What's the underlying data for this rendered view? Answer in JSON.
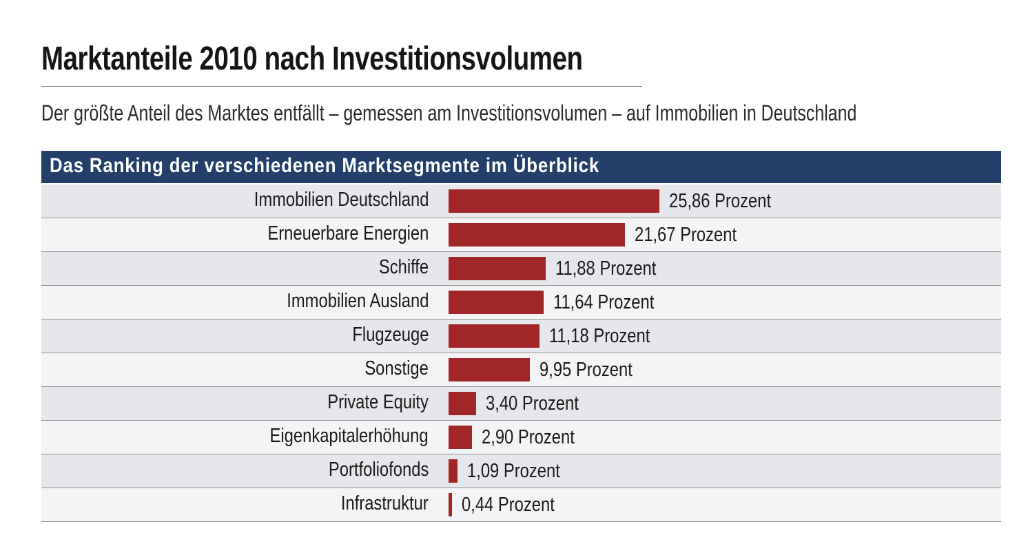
{
  "header": {
    "title": "Marktanteile 2010 nach Investitionsvolumen",
    "subtitle": "Der größte Anteil des Marktes entfällt – gemessen am Investitionsvolumen – auf Immobilien in Deutschland",
    "panel_title": "Das Ranking der verschiedenen Marktsegmente im Überblick"
  },
  "colors": {
    "bar": "#a0262a",
    "panel_header": "#233f6a"
  },
  "chart_data": {
    "type": "bar",
    "orientation": "horizontal",
    "title": "Marktanteile 2010 nach Investitionsvolumen",
    "subtitle": "Der größte Anteil des Marktes entfällt – gemessen am Investitionsvolumen – auf Immobilien in Deutschland",
    "categories": [
      "Immobilien Deutschland",
      "Erneuerbare Energien",
      "Schiffe",
      "Immobilien Ausland",
      "Flugzeuge",
      "Sonstige",
      "Private Equity",
      "Eigenkapitalerhöhung",
      "Portfoliofonds",
      "Infrastruktur"
    ],
    "values": [
      25.86,
      21.67,
      11.88,
      11.64,
      11.18,
      9.95,
      3.4,
      2.9,
      1.09,
      0.44
    ],
    "labels": [
      "25,86 Prozent",
      "21,67 Prozent",
      "11,88 Prozent",
      "11,64 Prozent",
      "11,18 Prozent",
      "9,95 Prozent",
      "3,40 Prozent",
      "2,90 Prozent",
      "1,09 Prozent",
      "0,44 Prozent"
    ],
    "grid": false
  }
}
